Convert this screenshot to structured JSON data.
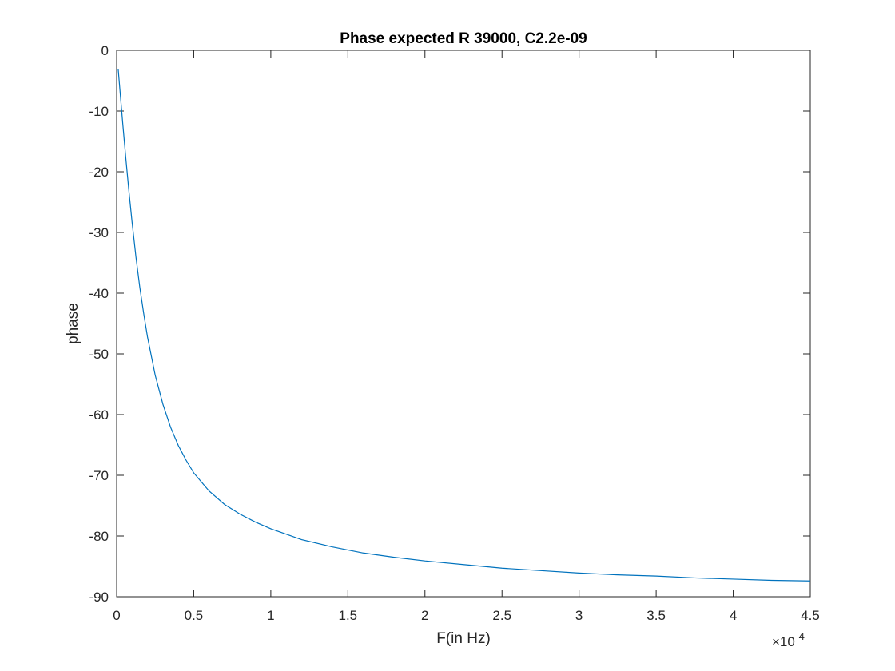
{
  "chart_data": {
    "type": "line",
    "title": "Phase expected R 39000, C2.2e-09",
    "xlabel": "F(in Hz)",
    "ylabel": "phase",
    "xlim": [
      0,
      45000
    ],
    "ylim": [
      -90,
      0
    ],
    "x_exponent_label": "×10",
    "x_exponent_power": "4",
    "x_ticks": [
      0,
      5000,
      10000,
      15000,
      20000,
      25000,
      30000,
      35000,
      40000,
      45000
    ],
    "x_tick_labels": [
      "0",
      "0.5",
      "1",
      "1.5",
      "2",
      "2.5",
      "3",
      "3.5",
      "4",
      "4.5"
    ],
    "y_ticks": [
      0,
      -10,
      -20,
      -30,
      -40,
      -50,
      -60,
      -70,
      -80,
      -90
    ],
    "y_tick_labels": [
      "0",
      "-10",
      "-20",
      "-30",
      "-40",
      "-50",
      "-60",
      "-70",
      "-80",
      "-90"
    ],
    "grid": false,
    "series": [
      {
        "color": "#0072BD",
        "x": [
          100,
          200,
          400,
          600,
          800,
          1000,
          1250,
          1500,
          1750,
          2000,
          2500,
          3000,
          3500,
          4000,
          4500,
          5000,
          6000,
          7000,
          8000,
          9000,
          10000,
          12000,
          14000,
          16000,
          18000,
          20000,
          22500,
          25000,
          27500,
          30000,
          32500,
          35000,
          37500,
          40000,
          42500,
          45000
        ],
        "y": [
          -3.08,
          -6.15,
          -12.2,
          -17.9,
          -23.3,
          -28.3,
          -34.0,
          -39.0,
          -43.3,
          -47.2,
          -53.5,
          -58.3,
          -62.1,
          -65.1,
          -67.5,
          -69.6,
          -72.6,
          -74.8,
          -76.4,
          -77.7,
          -78.8,
          -80.6,
          -81.8,
          -82.8,
          -83.5,
          -84.1,
          -84.7,
          -85.3,
          -85.7,
          -86.1,
          -86.4,
          -86.6,
          -86.9,
          -87.1,
          -87.3,
          -87.4
        ]
      }
    ]
  },
  "colors": {
    "line": "#0072BD",
    "axes": "#262626",
    "background": "#ffffff"
  }
}
